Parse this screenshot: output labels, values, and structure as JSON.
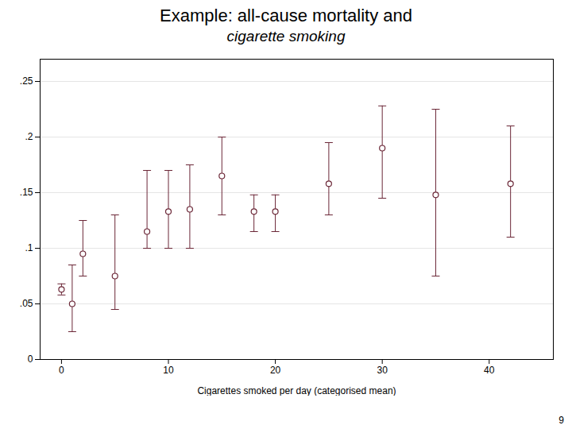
{
  "chart_data": {
    "type": "scatter",
    "title": "Example: all-cause mortality and",
    "subtitle": "cigarette smoking",
    "xlabel": "Cigarettes smoked per day (categorised mean)",
    "footnote": "9",
    "x": [
      0,
      1,
      2,
      5,
      8,
      10,
      12,
      15,
      18,
      20,
      25,
      30,
      35,
      42
    ],
    "values": [
      0.063,
      0.05,
      0.095,
      0.075,
      0.115,
      0.133,
      0.135,
      0.165,
      0.133,
      0.133,
      0.158,
      0.19,
      0.148,
      0.158
    ],
    "lower": [
      0.058,
      0.025,
      0.075,
      0.045,
      0.1,
      0.1,
      0.1,
      0.13,
      0.115,
      0.115,
      0.13,
      0.145,
      0.075,
      0.11
    ],
    "upper": [
      0.068,
      0.085,
      0.125,
      0.13,
      0.17,
      0.17,
      0.175,
      0.2,
      0.148,
      0.148,
      0.195,
      0.228,
      0.225,
      0.21
    ],
    "color": "#6b2737",
    "marker": "circle",
    "xlim": [
      -2,
      46
    ],
    "xticks": [
      0,
      10,
      20,
      30,
      40
    ],
    "ylim": [
      0,
      0.27
    ],
    "yticks": [
      0,
      {
        "value": 0.05,
        "label": ".05"
      },
      {
        "value": 0.1,
        "label": ".1"
      },
      {
        "value": 0.15,
        "label": ".15"
      },
      {
        "value": 0.2,
        "label": ".2"
      },
      {
        "value": 0.25,
        "label": ".25"
      }
    ],
    "grid": true
  }
}
